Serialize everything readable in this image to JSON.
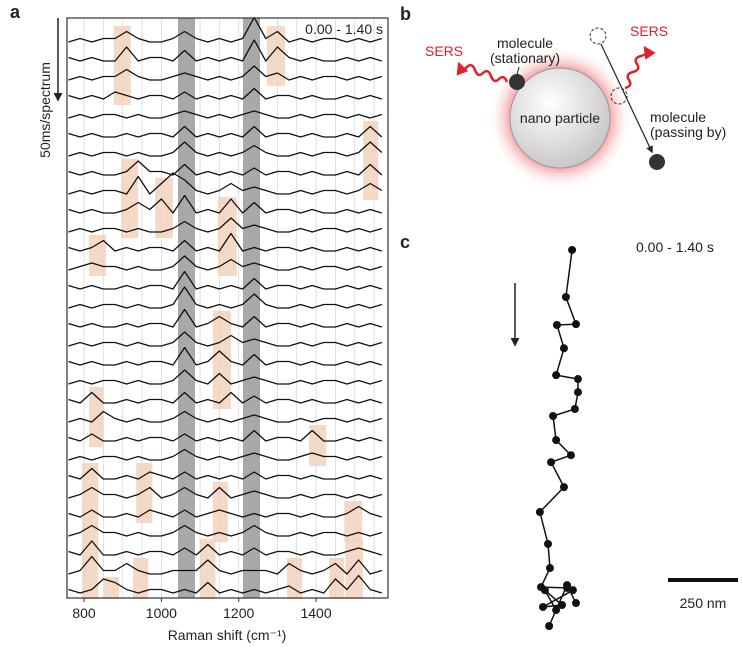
{
  "chart_data": [
    {
      "type": "line",
      "label": "a",
      "annotation": "0.00 - 1.40 s",
      "ylabel": "50ms/spectrum",
      "xlabel": "Raman shift (cm⁻¹)",
      "color": "#111111",
      "xlim": [
        756,
        1586
      ],
      "xticks": [
        800,
        1000,
        1200,
        1400
      ],
      "xgrid": [
        800,
        850,
        900,
        950,
        1000,
        1050,
        1100,
        1150,
        1200,
        1250,
        1300,
        1350,
        1400,
        1450,
        1500,
        1550
      ],
      "bands": [
        [
          1043,
          1087
        ],
        [
          1211,
          1255
        ]
      ],
      "band_color": "#9a9a9a",
      "highlights": [
        [
          877,
          921,
          0,
          3
        ],
        [
          1273,
          1320,
          0,
          2
        ],
        [
          1522,
          1561,
          5,
          8
        ],
        [
          896,
          940,
          7,
          10
        ],
        [
          984,
          1030,
          8,
          10
        ],
        [
          1146,
          1195,
          9,
          12
        ],
        [
          813,
          857,
          11,
          12
        ],
        [
          1133,
          1180,
          15,
          19
        ],
        [
          813,
          850,
          19,
          21
        ],
        [
          1382,
          1426,
          21,
          22
        ],
        [
          935,
          977,
          23,
          25
        ],
        [
          795,
          837,
          23,
          29
        ],
        [
          1133,
          1172,
          24,
          26
        ],
        [
          1473,
          1519,
          25,
          26
        ],
        [
          927,
          966,
          28,
          29
        ],
        [
          1101,
          1140,
          27,
          29
        ],
        [
          1325,
          1364,
          28,
          29
        ],
        [
          852,
          891,
          29,
          29
        ],
        [
          1434,
          1473,
          28,
          29
        ],
        [
          1476,
          1521,
          27,
          29
        ]
      ],
      "highlight_color": "#f2d2bd",
      "x": [
        760,
        790,
        820,
        850,
        880,
        910,
        940,
        970,
        1000,
        1030,
        1060,
        1090,
        1120,
        1150,
        1180,
        1210,
        1240,
        1270,
        1300,
        1330,
        1360,
        1390,
        1420,
        1450,
        1480,
        1510,
        1540,
        1570
      ],
      "series": [
        {
          "values": [
            0,
            1,
            0,
            1,
            1,
            3,
            1,
            0,
            0,
            1,
            3,
            1,
            0,
            1,
            0,
            1,
            7,
            1,
            3,
            0,
            1,
            0,
            1,
            1,
            0,
            1,
            0,
            1
          ]
        },
        {
          "values": [
            1,
            0,
            1,
            0,
            0,
            4,
            0,
            1,
            1,
            0,
            3,
            0,
            1,
            0,
            1,
            0,
            6,
            0,
            4,
            1,
            0,
            1,
            0,
            0,
            1,
            0,
            1,
            0
          ]
        },
        {
          "values": [
            0,
            1,
            0,
            1,
            1,
            3,
            1,
            0,
            0,
            1,
            2,
            1,
            0,
            1,
            0,
            1,
            4,
            1,
            2,
            0,
            1,
            0,
            1,
            1,
            0,
            1,
            0,
            1
          ]
        },
        {
          "values": [
            1,
            0,
            1,
            0,
            2,
            1,
            0,
            1,
            1,
            0,
            2,
            0,
            1,
            0,
            1,
            0,
            3,
            0,
            1,
            1,
            0,
            1,
            0,
            0,
            1,
            0,
            1,
            0
          ]
        },
        {
          "values": [
            0,
            1,
            0,
            1,
            1,
            0,
            1,
            0,
            0,
            1,
            2,
            1,
            0,
            1,
            0,
            1,
            2,
            1,
            0,
            0,
            1,
            0,
            1,
            1,
            0,
            1,
            0,
            1
          ]
        },
        {
          "values": [
            1,
            0,
            1,
            0,
            0,
            1,
            0,
            1,
            1,
            0,
            3,
            0,
            1,
            0,
            1,
            0,
            3,
            0,
            1,
            1,
            0,
            1,
            0,
            0,
            1,
            0,
            3,
            0
          ]
        },
        {
          "values": [
            0,
            1,
            0,
            1,
            1,
            0,
            1,
            0,
            0,
            1,
            4,
            1,
            0,
            1,
            0,
            1,
            3,
            1,
            0,
            0,
            1,
            0,
            1,
            1,
            0,
            1,
            4,
            1
          ]
        },
        {
          "values": [
            1,
            0,
            1,
            0,
            0,
            1,
            4,
            1,
            1,
            0,
            3,
            0,
            1,
            0,
            1,
            0,
            2,
            0,
            1,
            1,
            0,
            1,
            0,
            0,
            1,
            0,
            3,
            0
          ]
        },
        {
          "values": [
            0,
            1,
            0,
            1,
            1,
            0,
            5,
            0,
            3,
            6,
            4,
            1,
            0,
            1,
            3,
            1,
            2,
            1,
            0,
            0,
            1,
            0,
            1,
            1,
            0,
            1,
            3,
            1
          ]
        },
        {
          "values": [
            1,
            0,
            1,
            0,
            0,
            1,
            3,
            1,
            4,
            0,
            5,
            0,
            1,
            0,
            4,
            0,
            3,
            0,
            1,
            1,
            0,
            1,
            0,
            0,
            1,
            0,
            1,
            0
          ]
        },
        {
          "values": [
            0,
            1,
            0,
            1,
            1,
            0,
            1,
            0,
            0,
            1,
            3,
            1,
            0,
            1,
            4,
            1,
            2,
            1,
            0,
            0,
            1,
            0,
            1,
            1,
            0,
            1,
            0,
            1
          ]
        },
        {
          "values": [
            1,
            0,
            1,
            3,
            0,
            1,
            0,
            1,
            1,
            0,
            3,
            0,
            1,
            0,
            5,
            0,
            1,
            0,
            1,
            1,
            0,
            1,
            0,
            0,
            1,
            0,
            1,
            0
          ]
        },
        {
          "values": [
            0,
            1,
            2,
            1,
            1,
            0,
            1,
            0,
            0,
            1,
            4,
            1,
            0,
            1,
            3,
            1,
            2,
            1,
            0,
            0,
            1,
            0,
            1,
            1,
            0,
            1,
            0,
            1
          ]
        },
        {
          "values": [
            1,
            0,
            1,
            0,
            0,
            1,
            0,
            1,
            1,
            0,
            5,
            0,
            1,
            0,
            1,
            0,
            3,
            0,
            1,
            1,
            0,
            1,
            0,
            0,
            1,
            0,
            1,
            0
          ]
        },
        {
          "values": [
            0,
            1,
            0,
            1,
            1,
            0,
            1,
            0,
            0,
            1,
            6,
            1,
            0,
            1,
            0,
            1,
            4,
            1,
            0,
            0,
            1,
            0,
            1,
            1,
            0,
            1,
            0,
            1
          ]
        },
        {
          "values": [
            1,
            0,
            1,
            0,
            0,
            1,
            0,
            1,
            1,
            0,
            5,
            0,
            1,
            3,
            1,
            0,
            3,
            0,
            1,
            1,
            0,
            1,
            0,
            0,
            1,
            0,
            1,
            0
          ]
        },
        {
          "values": [
            0,
            1,
            0,
            1,
            1,
            0,
            1,
            0,
            0,
            1,
            4,
            1,
            0,
            1,
            3,
            1,
            2,
            1,
            0,
            0,
            1,
            0,
            1,
            1,
            0,
            1,
            0,
            1
          ]
        },
        {
          "values": [
            1,
            0,
            1,
            0,
            0,
            1,
            0,
            1,
            1,
            0,
            5,
            0,
            1,
            4,
            1,
            0,
            3,
            0,
            1,
            1,
            0,
            1,
            0,
            0,
            1,
            0,
            1,
            0
          ]
        },
        {
          "values": [
            0,
            1,
            0,
            1,
            1,
            0,
            1,
            0,
            0,
            1,
            4,
            1,
            0,
            3,
            0,
            1,
            2,
            1,
            0,
            0,
            1,
            0,
            1,
            1,
            0,
            1,
            0,
            1
          ]
        },
        {
          "values": [
            1,
            0,
            3,
            0,
            0,
            1,
            0,
            1,
            1,
            0,
            3,
            0,
            1,
            0,
            3,
            0,
            2,
            0,
            1,
            1,
            0,
            1,
            0,
            0,
            1,
            0,
            1,
            0
          ]
        },
        {
          "values": [
            0,
            1,
            0,
            3,
            1,
            0,
            1,
            0,
            0,
            1,
            3,
            1,
            0,
            1,
            0,
            1,
            2,
            1,
            0,
            0,
            1,
            0,
            1,
            1,
            0,
            1,
            0,
            1
          ]
        },
        {
          "values": [
            1,
            0,
            2,
            0,
            0,
            1,
            0,
            1,
            1,
            0,
            2,
            0,
            1,
            0,
            1,
            0,
            3,
            0,
            1,
            1,
            0,
            3,
            0,
            0,
            1,
            0,
            1,
            0
          ]
        },
        {
          "values": [
            0,
            1,
            0,
            1,
            1,
            0,
            1,
            0,
            0,
            1,
            3,
            1,
            0,
            1,
            0,
            1,
            2,
            1,
            0,
            0,
            1,
            2,
            1,
            1,
            0,
            1,
            0,
            1
          ]
        },
        {
          "values": [
            1,
            0,
            3,
            0,
            0,
            1,
            0,
            2,
            1,
            0,
            2,
            0,
            1,
            0,
            1,
            0,
            2,
            0,
            1,
            1,
            0,
            1,
            0,
            0,
            1,
            0,
            1,
            0
          ]
        },
        {
          "values": [
            0,
            1,
            3,
            1,
            1,
            0,
            1,
            3,
            0,
            1,
            3,
            1,
            0,
            3,
            0,
            1,
            2,
            1,
            0,
            0,
            1,
            0,
            1,
            1,
            0,
            1,
            0,
            1
          ]
        },
        {
          "values": [
            1,
            0,
            2,
            0,
            0,
            1,
            0,
            2,
            1,
            0,
            2,
            0,
            1,
            2,
            1,
            0,
            1,
            0,
            1,
            1,
            0,
            1,
            0,
            0,
            1,
            3,
            1,
            0
          ]
        },
        {
          "values": [
            0,
            1,
            3,
            1,
            1,
            0,
            1,
            0,
            0,
            1,
            3,
            1,
            0,
            1,
            0,
            1,
            3,
            1,
            0,
            0,
            1,
            0,
            1,
            1,
            0,
            1,
            0,
            1
          ]
        },
        {
          "values": [
            1,
            0,
            4,
            0,
            0,
            1,
            0,
            1,
            1,
            0,
            2,
            0,
            3,
            0,
            1,
            0,
            2,
            0,
            1,
            1,
            0,
            1,
            0,
            0,
            1,
            2,
            1,
            0
          ]
        },
        {
          "values": [
            0,
            1,
            5,
            1,
            1,
            3,
            1,
            0,
            0,
            1,
            1,
            1,
            4,
            1,
            0,
            1,
            1,
            1,
            0,
            3,
            1,
            0,
            1,
            3,
            0,
            4,
            0,
            1
          ]
        },
        {
          "values": [
            1,
            0,
            1,
            4,
            3,
            1,
            0,
            1,
            1,
            0,
            1,
            0,
            3,
            0,
            1,
            0,
            1,
            0,
            1,
            2,
            0,
            1,
            0,
            4,
            1,
            5,
            1,
            0
          ]
        }
      ]
    },
    {
      "type": "scatter",
      "label": "c",
      "annotation": "0.00 - 1.40 s",
      "color": "#111111",
      "x": [
        186,
        164,
        200,
        132,
        157,
        129,
        207,
        207,
        196,
        118,
        129,
        182,
        111,
        157,
        71,
        100,
        107,
        75,
        168,
        189,
        82,
        150,
        89,
        129,
        104,
        168,
        200
      ],
      "y": [
        1393,
        1225,
        1128,
        1125,
        1042,
        946,
        932,
        885,
        825,
        800,
        714,
        660,
        635,
        546,
        457,
        343,
        257,
        189,
        186,
        178,
        118,
        125,
        178,
        107,
        50,
        196,
        132
      ],
      "scale_bar": {
        "value": 250,
        "label": "250 nm"
      }
    }
  ],
  "diagram": {
    "label": "b",
    "sers_left": "SERS",
    "sers_right": "SERS",
    "stationary": [
      "molecule",
      "(stationary)"
    ],
    "particle": "nano particle",
    "passing": [
      "molecule",
      "(passing by)"
    ]
  }
}
